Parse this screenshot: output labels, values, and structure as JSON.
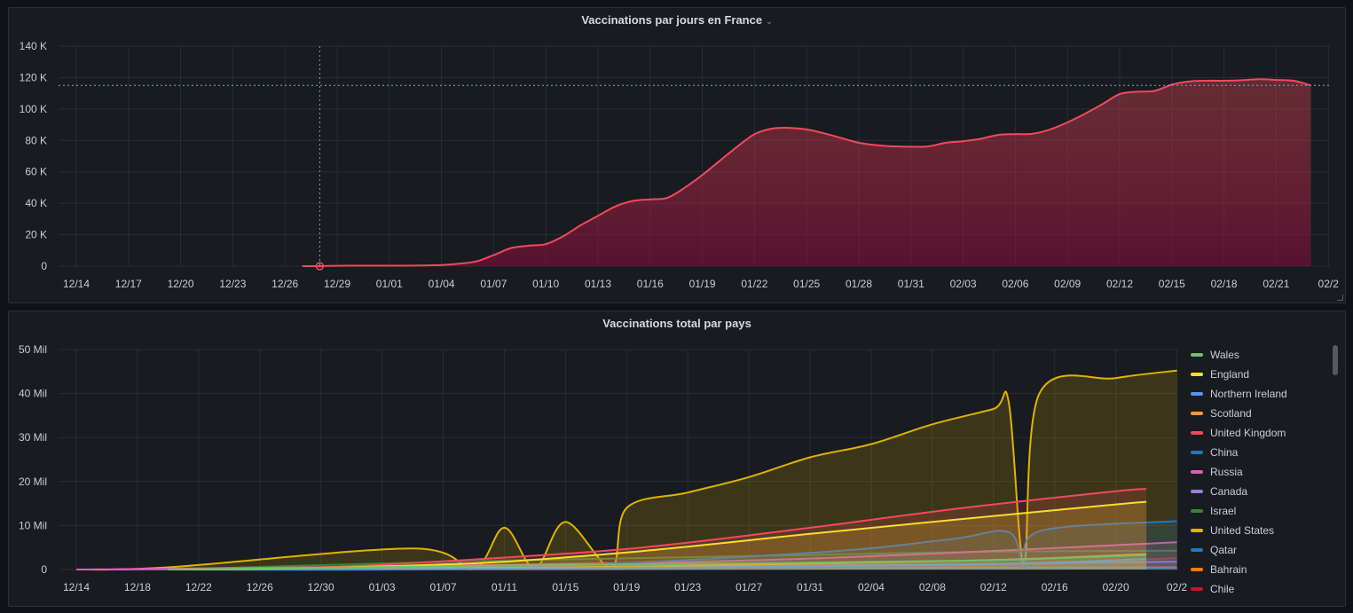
{
  "panel1": {
    "title": "Vaccinations par jours en France",
    "chart_data": {
      "type": "area",
      "x": [
        "12/27",
        "12/28",
        "12/29",
        "12/30",
        "12/31",
        "01/01",
        "01/02",
        "01/03",
        "01/04",
        "01/05",
        "01/06",
        "01/07",
        "01/08",
        "01/09",
        "01/10",
        "01/11",
        "01/12",
        "01/13",
        "01/14",
        "01/15",
        "01/16",
        "01/17",
        "01/18",
        "01/19",
        "01/20",
        "01/21",
        "01/22",
        "01/23",
        "01/24",
        "01/25",
        "01/26",
        "01/27",
        "01/28",
        "01/29",
        "01/30",
        "01/31",
        "02/01",
        "02/02",
        "02/03",
        "02/04",
        "02/05",
        "02/06",
        "02/07",
        "02/08",
        "02/09",
        "02/10",
        "02/11",
        "02/12",
        "02/13",
        "02/14",
        "02/15",
        "02/16",
        "02/17",
        "02/18",
        "02/19",
        "02/20",
        "02/21",
        "02/22",
        "02/23"
      ],
      "series": [
        {
          "values": [
            0,
            0,
            200,
            300,
            300,
            300,
            300,
            400,
            700,
            1500,
            3000,
            7000,
            11500,
            13000,
            14000,
            19000,
            26000,
            32000,
            38000,
            41500,
            42500,
            43500,
            50000,
            58000,
            67000,
            76000,
            84000,
            87500,
            88000,
            87000,
            84500,
            81500,
            78500,
            77000,
            76200,
            76000,
            76200,
            78500,
            79500,
            81000,
            83500,
            84000,
            84200,
            87000,
            91500,
            97000,
            103000,
            109500,
            111000,
            111500,
            115500,
            117500,
            118000,
            118000,
            118300,
            119000,
            118500,
            118000,
            115000
          ]
        }
      ],
      "ylim": [
        0,
        140000
      ],
      "yticks": [
        "0",
        "20 K",
        "40 K",
        "60 K",
        "80 K",
        "100 K",
        "120 K",
        "140 K"
      ],
      "xticks": [
        "12/14",
        "12/17",
        "12/20",
        "12/23",
        "12/26",
        "12/29",
        "01/01",
        "01/04",
        "01/07",
        "01/10",
        "01/13",
        "01/16",
        "01/19",
        "01/22",
        "01/25",
        "01/28",
        "01/31",
        "02/03",
        "02/06",
        "02/09",
        "02/12",
        "02/15",
        "02/18",
        "02/21",
        "02/2"
      ],
      "grid": true,
      "crosshair_x": "12/28",
      "crosshair_y": 115000,
      "line_color": "#f2495c"
    }
  },
  "panel2": {
    "title": "Vaccinations total par pays",
    "chart_data": {
      "type": "area",
      "ylim": [
        0,
        50000000
      ],
      "yticks": [
        "0",
        "10 Mil",
        "20 Mil",
        "30 Mil",
        "40 Mil",
        "50 Mil"
      ],
      "xticks": [
        "12/14",
        "12/18",
        "12/22",
        "12/26",
        "12/30",
        "01/03",
        "01/07",
        "01/11",
        "01/15",
        "01/19",
        "01/23",
        "01/27",
        "01/31",
        "02/04",
        "02/08",
        "02/12",
        "02/16",
        "02/20",
        "02/2"
      ],
      "grid": true,
      "legend_placement": "right",
      "series": [
        {
          "name": "Wales",
          "color": "#73bf69",
          "points": [
            [
              "12/20",
              0
            ],
            [
              "01/04",
              600000
            ],
            [
              "01/20",
              1200000
            ],
            [
              "02/10",
              2000000
            ],
            [
              "02/22",
              3300000
            ]
          ]
        },
        {
          "name": "England",
          "color": "#fade2a",
          "points": [
            [
              "12/20",
              0
            ],
            [
              "12/30",
              400000
            ],
            [
              "01/10",
              1600000
            ],
            [
              "01/20",
              4200000
            ],
            [
              "01/31",
              8100000
            ],
            [
              "02/10",
              11500000
            ],
            [
              "02/20",
              14800000
            ],
            [
              "02/22",
              15400000
            ]
          ]
        },
        {
          "name": "Northern Ireland",
          "color": "#5794f2",
          "points": [
            [
              "12/20",
              0
            ],
            [
              "01/15",
              300000
            ],
            [
              "02/10",
              1100000
            ],
            [
              "02/22",
              2400000
            ]
          ]
        },
        {
          "name": "Scotland",
          "color": "#ff9830",
          "points": [
            [
              "12/20",
              0
            ],
            [
              "01/15",
              500000
            ],
            [
              "02/10",
              2000000
            ],
            [
              "02/22",
              3500000
            ]
          ]
        },
        {
          "name": "United Kingdom",
          "color": "#f2495c",
          "points": [
            [
              "12/20",
              0
            ],
            [
              "12/30",
              500000
            ],
            [
              "01/10",
              2500000
            ],
            [
              "01/20",
              5000000
            ],
            [
              "01/31",
              9500000
            ],
            [
              "02/10",
              14000000
            ],
            [
              "02/20",
              17800000
            ],
            [
              "02/22",
              18300000
            ]
          ]
        },
        {
          "name": "China",
          "color": "#1f78c1",
          "points": [
            [
              "12/20",
              0
            ],
            [
              "01/10",
              300000
            ],
            [
              "01/31",
              3800000
            ],
            [
              "02/09",
              6800000
            ],
            [
              "02/13",
              8500000
            ],
            [
              "02/14",
              500000
            ],
            [
              "02/15",
              8700000
            ],
            [
              "02/24",
              11000000
            ]
          ]
        },
        {
          "name": "Russia",
          "color": "#e05db5",
          "points": [
            [
              "12/14",
              0
            ],
            [
              "01/10",
              1000000
            ],
            [
              "01/31",
              2500000
            ],
            [
              "02/24",
              6200000
            ]
          ]
        },
        {
          "name": "Canada",
          "color": "#9c7ee0",
          "points": [
            [
              "12/16",
              0
            ],
            [
              "01/15",
              500000
            ],
            [
              "02/10",
              1200000
            ],
            [
              "02/24",
              1800000
            ]
          ]
        },
        {
          "name": "Israel",
          "color": "#37872d",
          "points": [
            [
              "12/20",
              0
            ],
            [
              "12/30",
              1000000
            ],
            [
              "01/10",
              2000000
            ],
            [
              "01/31",
              3300000
            ],
            [
              "02/10",
              4000000
            ],
            [
              "02/24",
              4300000
            ]
          ]
        },
        {
          "name": "United States",
          "color": "#e0b400",
          "points": [
            [
              "12/14",
              0
            ],
            [
              "12/20",
              500000
            ],
            [
              "01/05",
              4800000
            ],
            [
              "01/09",
              200000
            ],
            [
              "01/11",
              9500000
            ],
            [
              "01/13",
              300000
            ],
            [
              "01/15",
              10800000
            ],
            [
              "01/18",
              400000
            ],
            [
              "01/19",
              14000000
            ],
            [
              "01/23",
              17500000
            ],
            [
              "01/27",
              21000000
            ],
            [
              "01/31",
              25500000
            ],
            [
              "02/04",
              28500000
            ],
            [
              "02/08",
              33000000
            ],
            [
              "02/12",
              36500000
            ],
            [
              "02/13",
              38000000
            ],
            [
              "02/14",
              1000000
            ],
            [
              "02/15",
              40000000
            ],
            [
              "02/20",
              43500000
            ],
            [
              "02/24",
              45200000
            ]
          ]
        },
        {
          "name": "Qatar",
          "color": "#1f78c1",
          "points": [
            [
              "12/24",
              0
            ],
            [
              "02/24",
              200000
            ]
          ]
        },
        {
          "name": "Bahrain",
          "color": "#ff780a",
          "points": [
            [
              "12/24",
              0
            ],
            [
              "02/24",
              500000
            ]
          ]
        },
        {
          "name": "Chile",
          "color": "#c4162a",
          "points": [
            [
              "12/24",
              0
            ],
            [
              "02/03",
              200000
            ],
            [
              "02/24",
              2600000
            ]
          ]
        }
      ]
    }
  }
}
